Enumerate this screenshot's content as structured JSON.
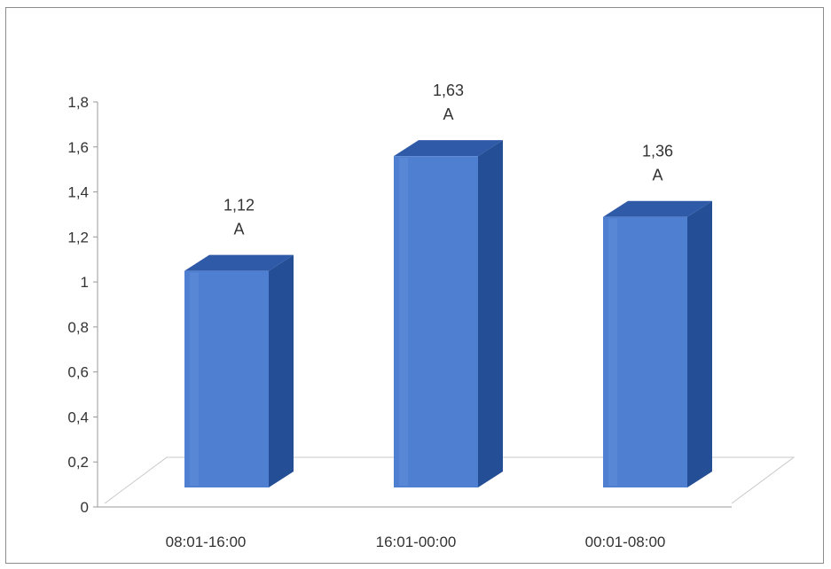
{
  "chart_data": {
    "type": "bar",
    "style": "3d-column",
    "categories": [
      "08:01-16:00",
      "16:01-00:00",
      "00:01-08:00"
    ],
    "values": [
      1.12,
      1.63,
      1.36
    ],
    "data_labels": [
      {
        "value": "1,12",
        "unit": "A"
      },
      {
        "value": "1,63",
        "unit": "A"
      },
      {
        "value": "1,36",
        "unit": "A"
      }
    ],
    "yticks": [
      "0",
      "0,2",
      "0,4",
      "0,6",
      "0,8",
      "1",
      "1,2",
      "1,4",
      "1,6",
      "1,8"
    ],
    "ylim": [
      0,
      1.8
    ],
    "title": "",
    "xlabel": "",
    "ylabel": "",
    "grid": false,
    "legend": "none",
    "colors": {
      "bar_front": "#4f7fd0",
      "bar_side": "#244f96",
      "bar_top": "#2f5aa8",
      "axis": "#999999",
      "text": "#333333"
    }
  }
}
